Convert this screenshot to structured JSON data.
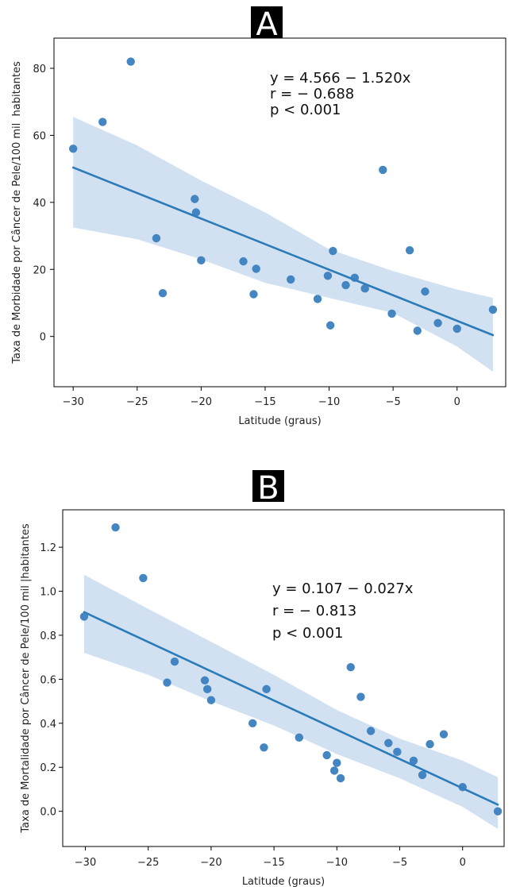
{
  "chart_data": [
    {
      "type": "scatter",
      "panel_label": "A",
      "xlabel": "Latitude (graus)",
      "ylabel": "Taxa de Morbidade por Câncer de Pele/100 mil  habitantes",
      "xlim": [
        -31.5,
        3.8
      ],
      "ylim": [
        -15,
        89
      ],
      "xticks": [
        -30,
        -25,
        -20,
        -15,
        -10,
        -5,
        0
      ],
      "yticks": [
        0,
        20,
        40,
        60,
        80
      ],
      "annotation": [
        "y = 4.566 − 1.520x",
        "r = − 0.688",
        "p < 0.001"
      ],
      "points": [
        {
          "x": -30.0,
          "y": 56.0
        },
        {
          "x": -27.7,
          "y": 64.0
        },
        {
          "x": -25.5,
          "y": 82.0
        },
        {
          "x": -23.5,
          "y": 29.3
        },
        {
          "x": -23.0,
          "y": 12.9
        },
        {
          "x": -20.5,
          "y": 41.0
        },
        {
          "x": -20.4,
          "y": 37.0
        },
        {
          "x": -20.0,
          "y": 22.7
        },
        {
          "x": -16.7,
          "y": 22.4
        },
        {
          "x": -15.9,
          "y": 12.6
        },
        {
          "x": -15.7,
          "y": 20.2
        },
        {
          "x": -13.0,
          "y": 17.0
        },
        {
          "x": -10.9,
          "y": 11.2
        },
        {
          "x": -10.1,
          "y": 18.1
        },
        {
          "x": -9.9,
          "y": 3.3
        },
        {
          "x": -9.7,
          "y": 25.5
        },
        {
          "x": -8.7,
          "y": 15.3
        },
        {
          "x": -8.0,
          "y": 17.5
        },
        {
          "x": -7.2,
          "y": 14.3
        },
        {
          "x": -5.8,
          "y": 49.7
        },
        {
          "x": -5.1,
          "y": 6.8
        },
        {
          "x": -3.7,
          "y": 25.7
        },
        {
          "x": -3.1,
          "y": 1.7
        },
        {
          "x": -2.5,
          "y": 13.4
        },
        {
          "x": -1.5,
          "y": 4.0
        },
        {
          "x": 0.0,
          "y": 2.3
        },
        {
          "x": 2.8,
          "y": 8.0
        }
      ],
      "fit": {
        "x": [
          -30.0,
          2.8
        ],
        "y": [
          50.4,
          0.4
        ]
      },
      "ci": {
        "x": [
          -30,
          -25,
          -20,
          -15,
          -10,
          -5,
          0,
          2.8
        ],
        "lower": [
          32.5,
          29.0,
          23.0,
          16.0,
          11.5,
          7.0,
          -3.0,
          -10.5
        ],
        "upper": [
          65.5,
          57.0,
          46.5,
          37.0,
          26.0,
          19.5,
          14.0,
          11.5
        ]
      },
      "colors": {
        "point": "#3a7fbf",
        "line": "#2c7bb9",
        "band": "#c9dcee"
      }
    },
    {
      "type": "scatter",
      "panel_label": "B",
      "xlabel": "Latitude (graus)",
      "ylabel": "Taxa de Mortalidade por Câncer de Pele/100 mil |habitantes",
      "xlim": [
        -31.8,
        3.3
      ],
      "ylim": [
        -0.16,
        1.37
      ],
      "xticks": [
        -30,
        -25,
        -20,
        -15,
        -10,
        -5,
        0
      ],
      "yticks": [
        0.0,
        0.2,
        0.4,
        0.6,
        0.8,
        1.0,
        1.2
      ],
      "annotation": [
        "y = 0.107 − 0.027x",
        "r = − 0.813",
        "p < 0.001"
      ],
      "points": [
        {
          "x": -30.1,
          "y": 0.885
        },
        {
          "x": -27.6,
          "y": 1.29
        },
        {
          "x": -25.4,
          "y": 1.06
        },
        {
          "x": -23.5,
          "y": 0.585
        },
        {
          "x": -22.9,
          "y": 0.68
        },
        {
          "x": -20.5,
          "y": 0.595
        },
        {
          "x": -20.3,
          "y": 0.555
        },
        {
          "x": -20.0,
          "y": 0.505
        },
        {
          "x": -16.7,
          "y": 0.4
        },
        {
          "x": -15.8,
          "y": 0.29
        },
        {
          "x": -15.6,
          "y": 0.555
        },
        {
          "x": -13.0,
          "y": 0.335
        },
        {
          "x": -10.8,
          "y": 0.255
        },
        {
          "x": -10.2,
          "y": 0.185
        },
        {
          "x": -10.0,
          "y": 0.22
        },
        {
          "x": -9.7,
          "y": 0.15
        },
        {
          "x": -8.9,
          "y": 0.655
        },
        {
          "x": -8.1,
          "y": 0.52
        },
        {
          "x": -7.3,
          "y": 0.365
        },
        {
          "x": -5.9,
          "y": 0.31
        },
        {
          "x": -5.2,
          "y": 0.27
        },
        {
          "x": -3.9,
          "y": 0.23
        },
        {
          "x": -3.2,
          "y": 0.165
        },
        {
          "x": -2.6,
          "y": 0.305
        },
        {
          "x": -1.5,
          "y": 0.35
        },
        {
          "x": 0.0,
          "y": 0.11
        },
        {
          "x": 2.8,
          "y": 0.0
        }
      ],
      "fit": {
        "x": [
          -30.1,
          2.8
        ],
        "y": [
          0.905,
          0.03
        ]
      },
      "ci": {
        "x": [
          -30.1,
          -25,
          -20,
          -15,
          -10,
          -5,
          0,
          2.8
        ],
        "lower": [
          0.72,
          0.62,
          0.5,
          0.39,
          0.26,
          0.15,
          0.02,
          -0.08
        ],
        "upper": [
          1.075,
          0.92,
          0.77,
          0.62,
          0.46,
          0.33,
          0.23,
          0.155
        ]
      },
      "colors": {
        "point": "#3a7fbf",
        "line": "#2c7bb9",
        "band": "#c9dcee"
      }
    }
  ]
}
